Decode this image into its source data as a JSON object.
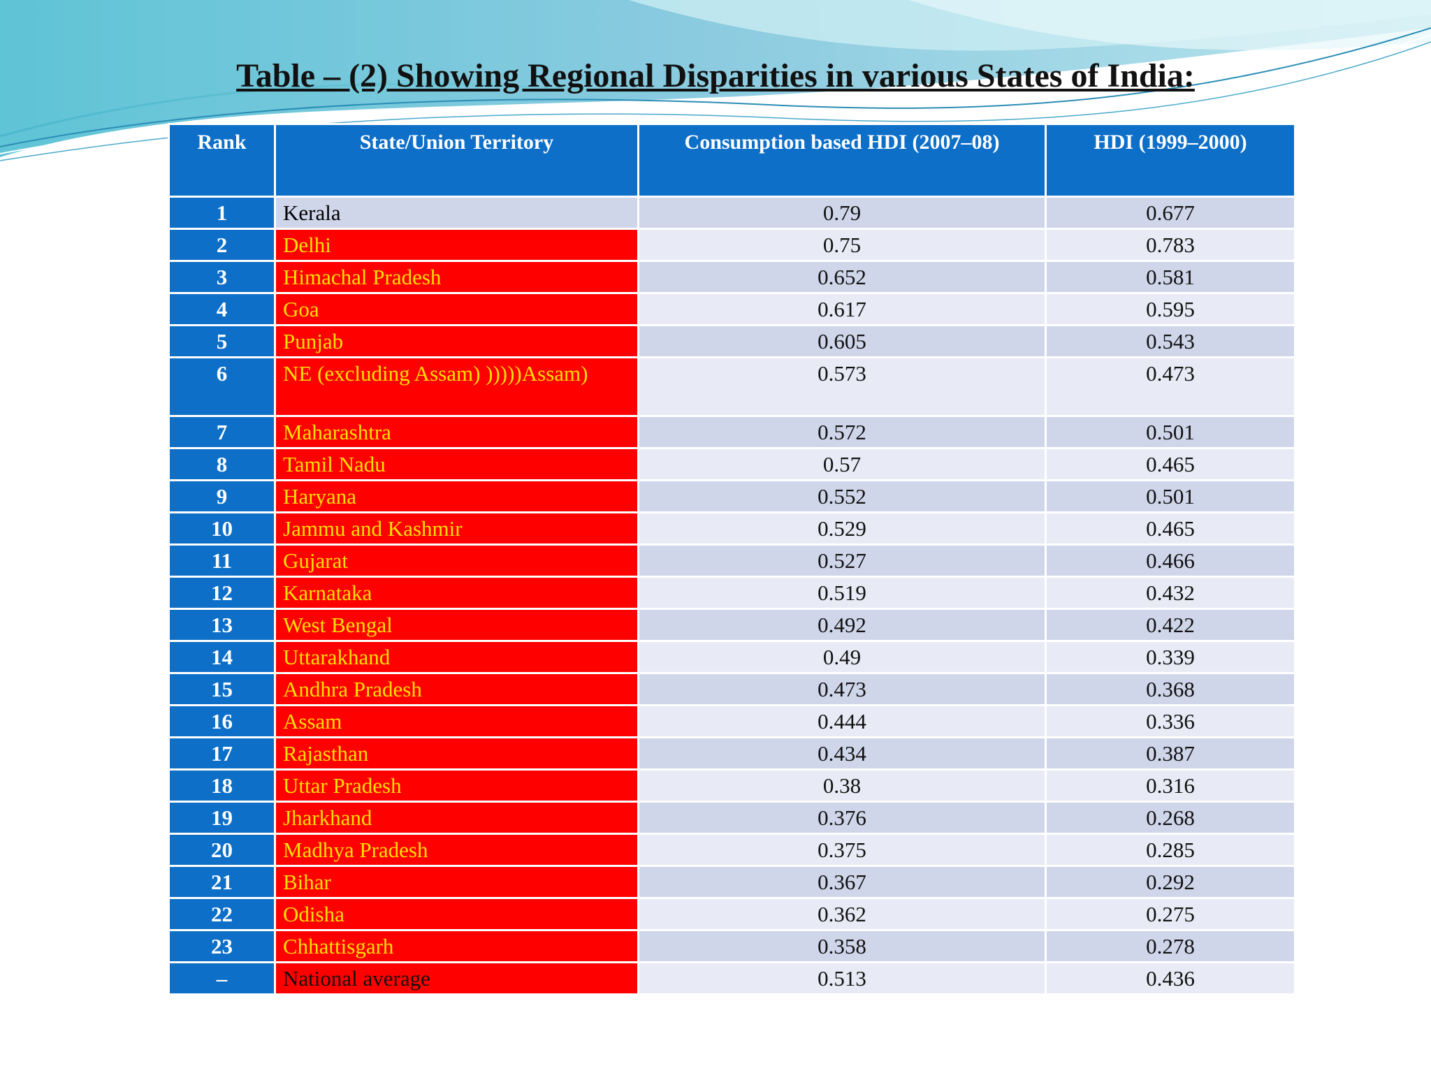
{
  "title": "Table – (2) Showing Regional Disparities in various States of India:",
  "colors": {
    "header_blue": "#0d6fc8",
    "state_red": "#ff0000",
    "state_text": "#ffe000",
    "row_light": "#e8ebf5",
    "row_dark": "#cfd6ea"
  },
  "table": {
    "headers": [
      "Rank",
      "State/Union Territory",
      "Consumption based HDI (2007–08)",
      "HDI (1999–2000)"
    ],
    "rows": [
      {
        "rank": "1",
        "state": "Kerala",
        "cons": "0.79",
        "hdi": "0.677"
      },
      {
        "rank": "2",
        "state": "Delhi",
        "cons": "0.75",
        "hdi": "0.783"
      },
      {
        "rank": "3",
        "state": "Himachal Pradesh",
        "cons": "0.652",
        "hdi": "0.581"
      },
      {
        "rank": "4",
        "state": "Goa",
        "cons": "0.617",
        "hdi": "0.595"
      },
      {
        "rank": "5",
        "state": "Punjab",
        "cons": "0.605",
        "hdi": "0.543"
      },
      {
        "rank": "6",
        "state": "NE (excluding Assam) )))))Assam)",
        "cons": "0.573",
        "hdi": "0.473"
      },
      {
        "rank": "7",
        "state": "Maharashtra",
        "cons": "0.572",
        "hdi": "0.501"
      },
      {
        "rank": "8",
        "state": "Tamil Nadu",
        "cons": "0.57",
        "hdi": "0.465"
      },
      {
        "rank": "9",
        "state": "Haryana",
        "cons": "0.552",
        "hdi": "0.501"
      },
      {
        "rank": "10",
        "state": "Jammu and Kashmir",
        "cons": "0.529",
        "hdi": "0.465"
      },
      {
        "rank": "11",
        "state": "Gujarat",
        "cons": "0.527",
        "hdi": "0.466"
      },
      {
        "rank": "12",
        "state": "Karnataka",
        "cons": "0.519",
        "hdi": "0.432"
      },
      {
        "rank": "13",
        "state": "West Bengal",
        "cons": "0.492",
        "hdi": "0.422"
      },
      {
        "rank": "14",
        "state": "Uttarakhand",
        "cons": "0.49",
        "hdi": "0.339"
      },
      {
        "rank": "15",
        "state": "Andhra Pradesh",
        "cons": "0.473",
        "hdi": "0.368"
      },
      {
        "rank": "16",
        "state": "Assam",
        "cons": "0.444",
        "hdi": "0.336"
      },
      {
        "rank": "17",
        "state": "Rajasthan",
        "cons": "0.434",
        "hdi": "0.387"
      },
      {
        "rank": "18",
        "state": "Uttar Pradesh",
        "cons": "0.38",
        "hdi": "0.316"
      },
      {
        "rank": "19",
        "state": "Jharkhand",
        "cons": "0.376",
        "hdi": "0.268"
      },
      {
        "rank": "20",
        "state": "Madhya Pradesh",
        "cons": "0.375",
        "hdi": "0.285"
      },
      {
        "rank": "21",
        "state": "Bihar",
        "cons": "0.367",
        "hdi": "0.292"
      },
      {
        "rank": "22",
        "state": "Odisha",
        "cons": "0.362",
        "hdi": "0.275"
      },
      {
        "rank": "23",
        "state": "Chhattisgarh",
        "cons": "0.358",
        "hdi": "0.278"
      },
      {
        "rank": "–",
        "state": "National average",
        "cons": "0.513",
        "hdi": "0.436"
      }
    ]
  }
}
